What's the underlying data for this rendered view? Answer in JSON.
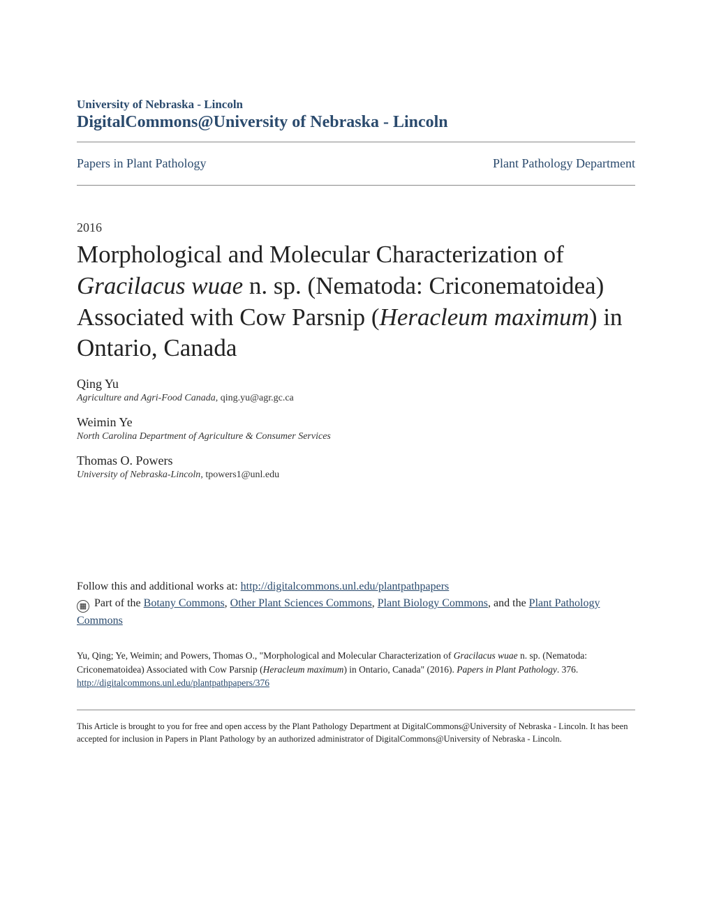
{
  "header": {
    "institution": "University of Nebraska - Lincoln",
    "repository": "DigitalCommons@University of Nebraska - Lincoln"
  },
  "pubrow": {
    "left": "Papers in Plant Pathology",
    "right": "Plant Pathology Department"
  },
  "year": "2016",
  "title": {
    "part1": "Morphological and Molecular Characterization of ",
    "ital1": "Gracilacus wuae",
    "part2": " n. sp. (Nematoda: Criconematoidea) Associated with Cow Parsnip (",
    "ital2": "Heracleum maximum",
    "part3": ") in Ontario, Canada"
  },
  "authors": [
    {
      "name": "Qing Yu",
      "affiliation": "Agriculture and Agri-Food Canada",
      "email": ", qing.yu@agr.gc.ca"
    },
    {
      "name": "Weimin Ye",
      "affiliation": "North Carolina Department of Agriculture & Consumer Services",
      "email": ""
    },
    {
      "name": "Thomas O. Powers",
      "affiliation": "University of Nebraska-Lincoln",
      "email": ", tpowers1@unl.edu"
    }
  ],
  "follow": {
    "lead": "Follow this and additional works at: ",
    "url": "http://digitalcommons.unl.edu/plantpathpapers",
    "partof_lead": "Part of the ",
    "commons": [
      "Botany Commons",
      "Other Plant Sciences Commons",
      "Plant Biology Commons"
    ],
    "and_the": ", and the ",
    "last_common": "Plant Pathology Commons"
  },
  "citation": {
    "pre": "Yu, Qing; Ye, Weimin; and Powers, Thomas O., \"Morphological and Molecular Characterization of ",
    "ital1": "Gracilacus wuae",
    "mid1": " n. sp. (Nematoda: Criconematoidea) Associated with Cow Parsnip (",
    "ital2": "Heracleum maximum",
    "mid2": ") in Ontario, Canada\" (2016). ",
    "ital3": "Papers in Plant Pathology",
    "post": ". 376.",
    "link": "http://digitalcommons.unl.edu/plantpathpapers/376"
  },
  "footer": "This Article is brought to you for free and open access by the Plant Pathology Department at DigitalCommons@University of Nebraska - Lincoln. It has been accepted for inclusion in Papers in Plant Pathology by an authorized administrator of DigitalCommons@University of Nebraska - Lincoln."
}
